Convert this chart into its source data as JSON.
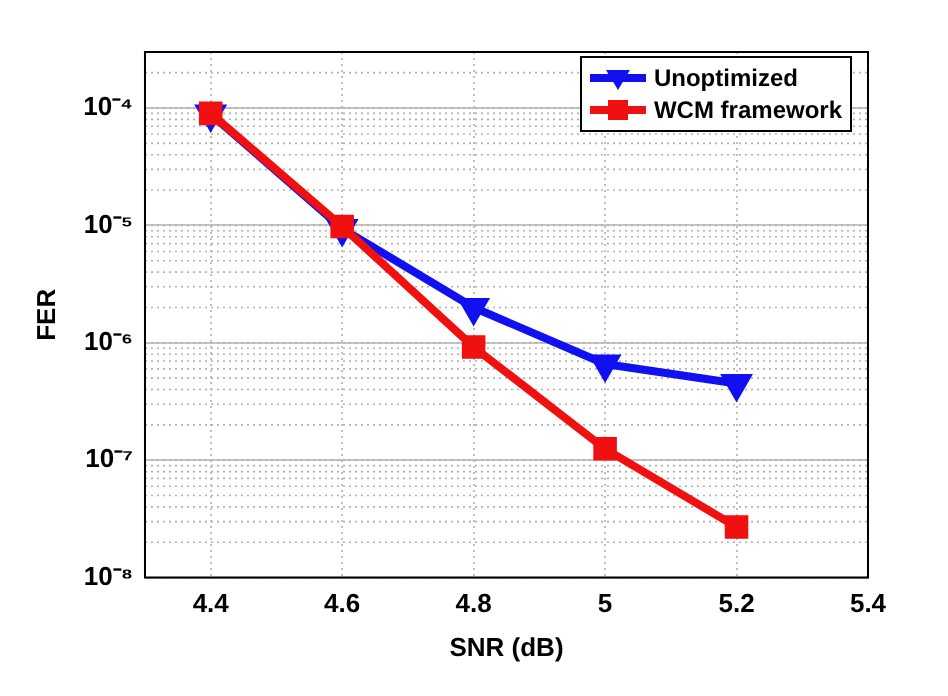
{
  "chart_data": {
    "type": "line",
    "xlabel": "SNR (dB)",
    "ylabel": "FER",
    "x": [
      4.4,
      4.6,
      4.8,
      5,
      5.2
    ],
    "series": [
      {
        "name": "Unoptimized",
        "color": "#1010f0",
        "marker": "triangle",
        "values": [
          8.9e-05,
          9.4e-06,
          2e-06,
          6.6e-07,
          4.5e-07
        ]
      },
      {
        "name": "WCM framework",
        "color": "#f01010",
        "marker": "square",
        "values": [
          9e-05,
          9.8e-06,
          9.2e-07,
          1.25e-07,
          2.7e-08
        ]
      }
    ],
    "xlim": [
      4.3,
      5.4
    ],
    "xticks": [
      4.4,
      4.6,
      4.8,
      5,
      5.2,
      5.4
    ],
    "ylim": [
      1e-08,
      0.0003
    ],
    "yticks": [
      {
        "value": 1e-08,
        "label": "10⁻⁸"
      },
      {
        "value": 1e-07,
        "label": "10⁻⁷"
      },
      {
        "value": 1e-06,
        "label": "10⁻⁶"
      },
      {
        "value": 1e-05,
        "label": "10⁻⁵"
      },
      {
        "value": 0.0001,
        "label": "10⁻⁴"
      }
    ],
    "log": "y",
    "grid": true,
    "legend": "top right",
    "line_style": "solid"
  }
}
